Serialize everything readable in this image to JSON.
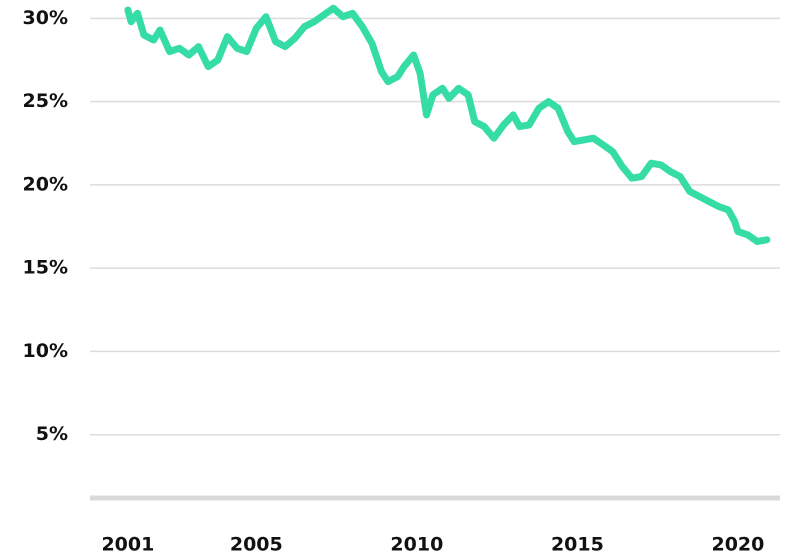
{
  "chart_data": {
    "type": "line",
    "x": [
      2001.0,
      2001.1,
      2001.3,
      2001.5,
      2001.8,
      2002.0,
      2002.3,
      2002.6,
      2002.9,
      2003.2,
      2003.5,
      2003.8,
      2004.1,
      2004.4,
      2004.7,
      2005.0,
      2005.3,
      2005.6,
      2005.9,
      2006.2,
      2006.5,
      2006.8,
      2007.1,
      2007.4,
      2007.7,
      2008.0,
      2008.3,
      2008.6,
      2008.9,
      2009.1,
      2009.4,
      2009.6,
      2009.9,
      2010.1,
      2010.3,
      2010.5,
      2010.8,
      2011.0,
      2011.3,
      2011.6,
      2011.8,
      2012.1,
      2012.4,
      2012.7,
      2013.0,
      2013.2,
      2013.5,
      2013.8,
      2014.1,
      2014.4,
      2014.7,
      2014.9,
      2015.2,
      2015.5,
      2015.8,
      2016.1,
      2016.4,
      2016.7,
      2017.0,
      2017.3,
      2017.6,
      2017.9,
      2018.2,
      2018.5,
      2018.8,
      2019.1,
      2019.4,
      2019.7,
      2019.9,
      2020.0,
      2020.3,
      2020.6,
      2020.9
    ],
    "series": [
      {
        "color": "#36dca6",
        "values": [
          30.5,
          29.8,
          30.3,
          29.0,
          28.7,
          29.3,
          28.0,
          28.2,
          27.8,
          28.3,
          27.1,
          27.5,
          28.9,
          28.2,
          28.0,
          29.4,
          30.1,
          28.6,
          28.3,
          28.8,
          29.5,
          29.8,
          30.2,
          30.6,
          30.1,
          30.3,
          29.5,
          28.5,
          26.8,
          26.2,
          26.5,
          27.1,
          27.8,
          26.7,
          24.2,
          25.4,
          25.8,
          25.2,
          25.8,
          25.4,
          23.8,
          23.5,
          22.8,
          23.6,
          24.2,
          23.5,
          23.6,
          24.6,
          25.0,
          24.6,
          23.2,
          22.6,
          22.7,
          22.8,
          22.4,
          22.0,
          21.1,
          20.4,
          20.5,
          21.3,
          21.2,
          20.8,
          20.5,
          19.6,
          19.3,
          19.0,
          18.7,
          18.5,
          17.8,
          17.2,
          17.0,
          16.6,
          16.7
        ]
      }
    ],
    "xlim": [
      1999.82,
      2021.31
    ],
    "xticks": [
      2001,
      2005,
      2010,
      2015,
      2020
    ],
    "ylim": [
      1.2,
      31.1
    ],
    "yticks": [
      {
        "value": 5,
        "label": "5%"
      },
      {
        "value": 10,
        "label": "10%"
      },
      {
        "value": 15,
        "label": "15%"
      },
      {
        "value": 20,
        "label": "20%"
      },
      {
        "value": 25,
        "label": "25%"
      },
      {
        "value": 30,
        "label": "30%"
      }
    ],
    "grid": true
  }
}
